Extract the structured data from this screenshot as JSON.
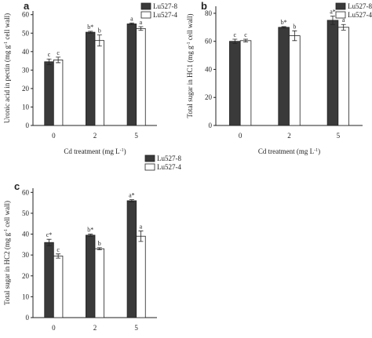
{
  "chart_data": [
    {
      "type": "bar",
      "panel_label": "a",
      "y_label": [
        "Uronic acid in pectin (mg g",
        "-1",
        " cell wall)"
      ],
      "x_label": [
        "Cd treatment (mg L",
        "-1",
        ")"
      ],
      "categories": [
        "0",
        "2",
        "5"
      ],
      "series": [
        {
          "name": "Lu527-8",
          "color": "#3a3a3a",
          "values": [
            34.5,
            50.5,
            55
          ],
          "errors": [
            1.5,
            0.5,
            0.5
          ],
          "letters": [
            "c",
            "b*",
            "a"
          ]
        },
        {
          "name": "Lu527-4",
          "color": "#ffffff",
          "values": [
            35.5,
            46,
            52.5
          ],
          "errors": [
            1.5,
            3,
            1
          ],
          "letters": [
            "c",
            "b",
            "a"
          ]
        }
      ],
      "ylim": [
        0,
        62
      ],
      "yticks": [
        0,
        10,
        20,
        30,
        40,
        50,
        60
      ]
    },
    {
      "type": "bar",
      "panel_label": "b",
      "y_label": [
        "Total sugar in HC1 (mg g",
        "-1",
        " cell wall)"
      ],
      "x_label": [
        "Cd treatment (mg L",
        "-1",
        ")"
      ],
      "categories": [
        "0",
        "2",
        "5"
      ],
      "series": [
        {
          "name": "Lu527-8",
          "color": "#3a3a3a",
          "values": [
            60,
            70,
            75
          ],
          "errors": [
            1.5,
            0.5,
            3
          ],
          "letters": [
            "c",
            "b*",
            "a*"
          ]
        },
        {
          "name": "Lu527-4",
          "color": "#ffffff",
          "values": [
            60.5,
            64,
            70
          ],
          "errors": [
            1,
            3.5,
            2
          ],
          "letters": [
            "c",
            "b",
            "a"
          ]
        }
      ],
      "ylim": [
        0,
        85
      ],
      "yticks": [
        0,
        20,
        40,
        60,
        80
      ]
    },
    {
      "type": "bar",
      "panel_label": "c",
      "y_label": [
        "Total sugar in HC2 (mg g",
        "-1",
        " cell wall)"
      ],
      "x_label": [
        "Cd treatment (mg L",
        "-1",
        ")"
      ],
      "categories": [
        "0",
        "2",
        "5"
      ],
      "series": [
        {
          "name": "Lu527-8",
          "color": "#3a3a3a",
          "values": [
            36,
            39.5,
            56
          ],
          "errors": [
            1.5,
            0.5,
            0.5
          ],
          "letters": [
            "c*",
            "b*",
            "a*"
          ]
        },
        {
          "name": "Lu527-4",
          "color": "#ffffff",
          "values": [
            29.5,
            33,
            39
          ],
          "errors": [
            1,
            0.5,
            2.5
          ],
          "letters": [
            "c",
            "b",
            "a"
          ]
        }
      ],
      "ylim": [
        0,
        62
      ],
      "yticks": [
        0,
        10,
        20,
        30,
        40,
        50,
        60
      ]
    }
  ]
}
